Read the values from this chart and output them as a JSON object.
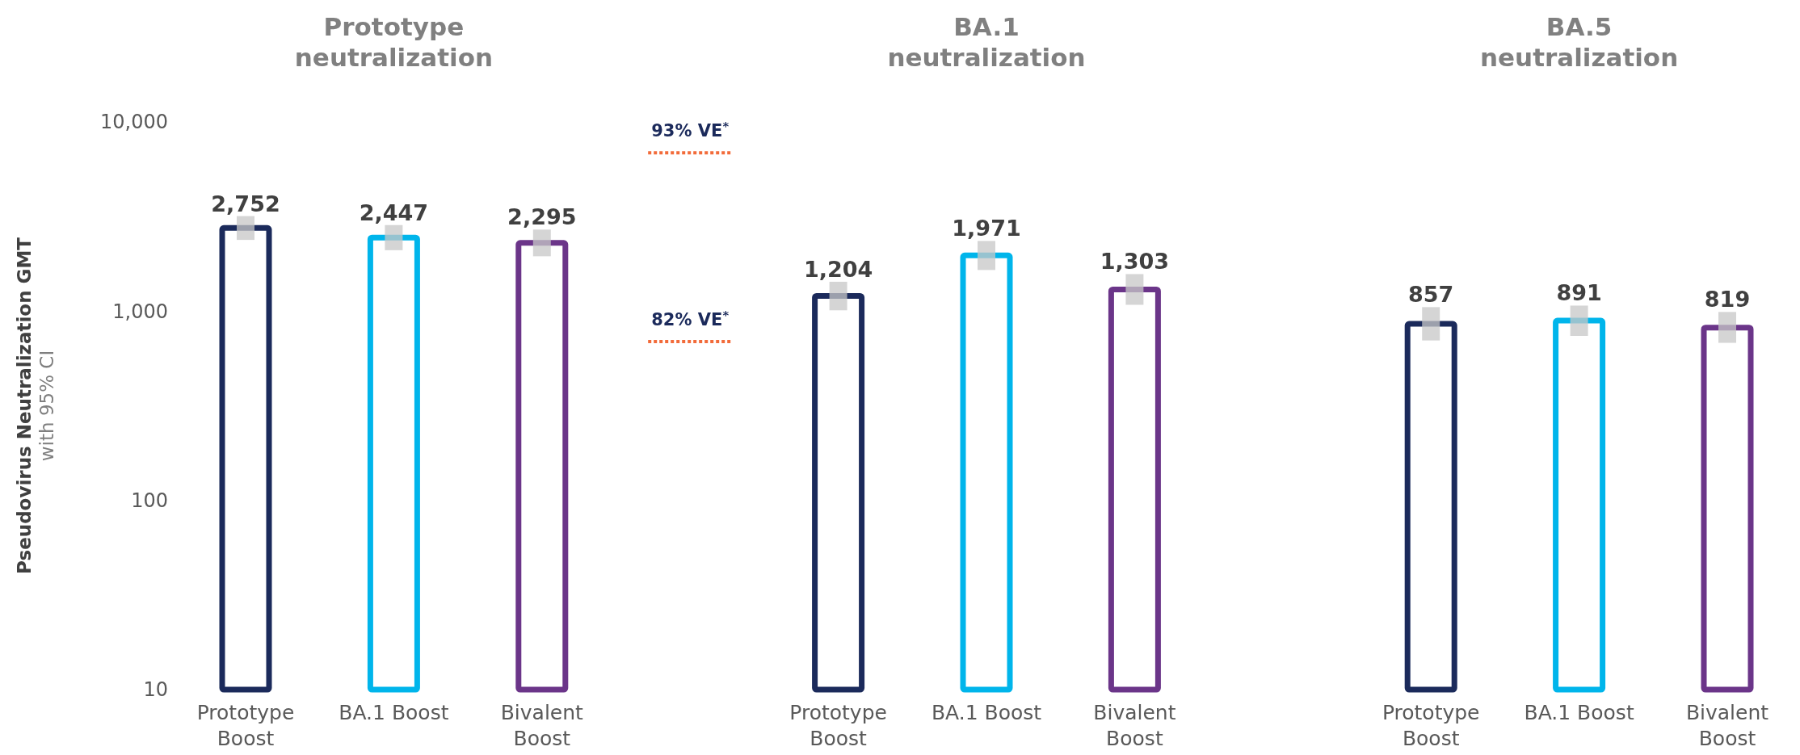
{
  "chart_data": {
    "type": "bar",
    "log": "y",
    "ylabel": "Pseudovirus Neutralization GMT\nwith 95% CI",
    "categories": [
      "Prototype Boost",
      "BA.1 Boost",
      "Bivalent Boost",
      null,
      "Prototype Boost",
      "BA.1 Boost",
      "Bivalent Boost",
      null,
      "Prototype Boost",
      "BA.1 Boost",
      "Bivalent Boost"
    ],
    "series": [
      {
        "values": [
          2752,
          2447,
          2295,
          null,
          1204,
          1971,
          1303,
          null,
          857,
          891,
          819
        ],
        "colors": [
          "#1b2a5b",
          "#00b5eb",
          "#6b3589",
          null,
          "#1b2a5b",
          "#00b5eb",
          "#6b3589",
          null,
          "#1b2a5b",
          "#00b5eb",
          "#6b3589"
        ],
        "errors": [
          [
            2380,
            3180
          ],
          [
            2100,
            2850
          ],
          [
            1950,
            2700
          ],
          null,
          [
            1010,
            1430
          ],
          [
            1650,
            2350
          ],
          [
            1080,
            1570
          ],
          null,
          [
            700,
            1050
          ],
          [
            740,
            1070
          ],
          [
            680,
            990
          ]
        ],
        "value_labels": [
          "2,752",
          "2,447",
          "2,295",
          null,
          "1,204",
          "1,971",
          "1,303",
          null,
          "857",
          "891",
          "819"
        ]
      }
    ],
    "ylim": [
      10,
      10000
    ],
    "yticks": [
      10,
      100,
      {
        "value": 1000,
        "label": "1,000"
      },
      {
        "value": 10000,
        "label": "10,000"
      }
    ],
    "grid": false,
    "annotations": [
      "Prototype\nneutralization",
      "BA.1\nneutralization",
      "BA.5\nneutralization"
    ],
    "ref_lines": [
      {
        "axis": "y",
        "value": 6860,
        "label": "93% VE$^{*}$",
        "color": "#f26b3a",
        "line_style": "dotted"
      },
      {
        "axis": "y",
        "value": 690,
        "label": "82% VE$^{*}$",
        "color": "#f26b3a",
        "line_style": "dotted"
      }
    ]
  }
}
